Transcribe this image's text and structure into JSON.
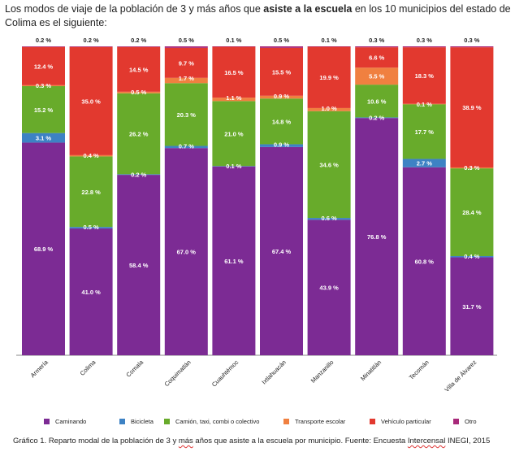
{
  "intro": {
    "part1": "Los modos de viaje de la población de 3 y más años que ",
    "bold": "asiste a la escuela",
    "part2": " en los 10 municipios del estado de Colima es el siguiente:"
  },
  "colors": {
    "Caminando": "#7c2b94",
    "Bicicleta": "#3d82c4",
    "Camion": "#68ab2b",
    "Transporte escolar": "#f08040",
    "Vehiculo particular": "#e2392f",
    "Otro": "#a8297a"
  },
  "chart_data": {
    "type": "bar",
    "stacked": true,
    "categories": [
      "Armería",
      "Colima",
      "Comala",
      "Coquimatlán",
      "Cuauhtémoc",
      "Ixtlahuacán",
      "Manzanillo",
      "Minatitlán",
      "Tecomán",
      "Villa de Álvarez"
    ],
    "ylim": [
      0,
      100
    ],
    "legend_position": "bottom",
    "series": [
      {
        "name": "Caminando",
        "color_key": "Caminando",
        "values": [
          68.9,
          41.0,
          58.4,
          67.0,
          61.1,
          67.4,
          43.9,
          76.8,
          60.8,
          31.7
        ],
        "labels": [
          "68.9 %",
          "41.0 %",
          "58.4 %",
          "67.0 %",
          "61.1 %",
          "67.4 %",
          "43.9 %",
          "76.8 %",
          "60.8 %",
          "31.7 %"
        ]
      },
      {
        "name": "Bicicleta",
        "color_key": "Bicicleta",
        "values": [
          3.1,
          0.5,
          0.2,
          0.7,
          0.1,
          0.9,
          0.6,
          0.2,
          2.7,
          0.4
        ],
        "labels": [
          "3.1 %",
          "0.5 %",
          "0.2 %",
          "0.7 %",
          "0.1 %",
          "0.9 %",
          "0.6 %",
          "0.2 %",
          "2.7 %",
          "0.4 %"
        ]
      },
      {
        "name": "Camión, taxi, combi o colectivo",
        "color_key": "Camion",
        "values": [
          15.2,
          22.8,
          26.2,
          20.3,
          21.0,
          14.8,
          34.6,
          10.6,
          17.7,
          28.4
        ],
        "labels": [
          "15.2 %",
          "22.8 %",
          "26.2 %",
          "20.3 %",
          "21.0 %",
          "14.8 %",
          "34.6 %",
          "10.6 %",
          "17.7 %",
          "28.4 %"
        ]
      },
      {
        "name": "Transporte escolar",
        "color_key": "Transporte escolar",
        "values": [
          0.3,
          0.4,
          0.5,
          1.7,
          1.1,
          0.9,
          1.0,
          5.5,
          0.1,
          0.3
        ],
        "labels": [
          "0.3 %",
          "0.4 %",
          "0.5 %",
          "1.7 %",
          "1.1 %",
          "0.9 %",
          "1.0 %",
          "5.5 %",
          "0.1 %",
          "0.3 %"
        ]
      },
      {
        "name": "Vehículo particular",
        "color_key": "Vehiculo particular",
        "values": [
          12.4,
          35.0,
          14.5,
          9.7,
          16.5,
          15.5,
          19.9,
          6.6,
          18.3,
          38.9
        ],
        "labels": [
          "12.4 %",
          "35.0 %",
          "14.5 %",
          "9.7 %",
          "16.5 %",
          "15.5 %",
          "19.9 %",
          "6.6 %",
          "18.3 %",
          "38.9 %"
        ]
      },
      {
        "name": "Otro",
        "color_key": "Otro",
        "values": [
          0.2,
          0.2,
          0.2,
          0.5,
          0.1,
          0.5,
          0.1,
          0.3,
          0.3,
          0.3
        ],
        "labels": [
          "0.2 %",
          "0.2 %",
          "0.2 %",
          "0.5 %",
          "0.1 %",
          "0.5 %",
          "0.1 %",
          "0.3 %",
          "0.3 %",
          "0.3 %"
        ]
      }
    ]
  },
  "legend": [
    {
      "label": "Caminando",
      "color_key": "Caminando"
    },
    {
      "label": "Bicicleta",
      "color_key": "Bicicleta"
    },
    {
      "label": "Camión, taxi, combi o colectivo",
      "color_key": "Camion"
    },
    {
      "label": "Transporte escolar",
      "color_key": "Transporte escolar"
    },
    {
      "label": "Vehículo particular",
      "color_key": "Vehiculo particular"
    },
    {
      "label": "Otro",
      "color_key": "Otro"
    }
  ],
  "caption": {
    "p1": "Gráfico 1. Reparto modal de la población de 3 y ",
    "w1": "más",
    "p2": " años que asiste a la escuela por municipio. Fuente: Encuesta ",
    "w2": "Intercensal",
    "p3": " INEGI, 2015"
  }
}
